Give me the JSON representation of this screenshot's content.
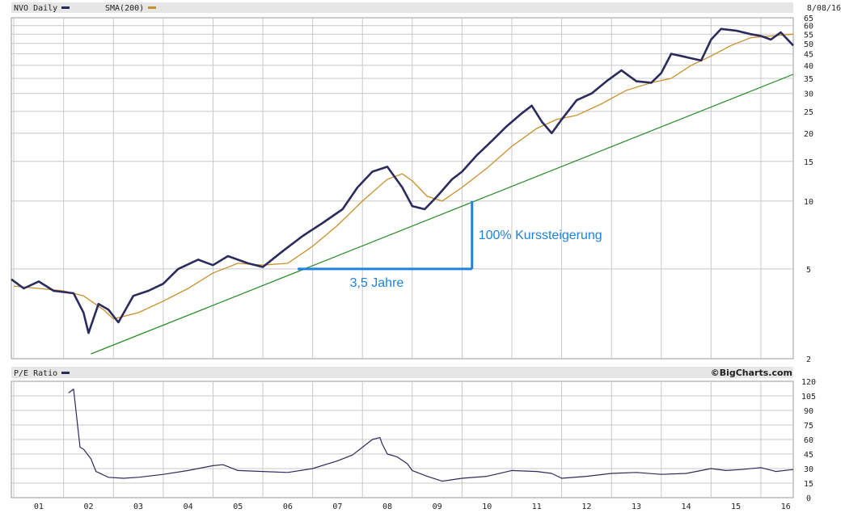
{
  "header": {
    "series_label": "NVO Daily",
    "sma_label": "SMA(200)",
    "date": "8/08/16",
    "pe_label": "P/E Ratio",
    "brand": "©BigCharts.com"
  },
  "colors": {
    "price": "#2b2b5c",
    "sma": "#c8902a",
    "trend": "#1f8a1f",
    "annotation": "#1e82e0",
    "grid": "#c8c8c8",
    "band": "#e6e6e6"
  },
  "chart_data": [
    {
      "type": "line",
      "scale": "log",
      "x_labels": [
        "01",
        "02",
        "03",
        "04",
        "05",
        "06",
        "07",
        "08",
        "09",
        "10",
        "11",
        "12",
        "13",
        "14",
        "15",
        "16"
      ],
      "y_ticks": [
        2,
        5,
        10,
        15,
        20,
        25,
        30,
        35,
        40,
        45,
        50,
        55,
        60,
        65
      ],
      "ylim": [
        2,
        65
      ],
      "xlim": [
        2000.95,
        2016.65
      ],
      "series": [
        {
          "name": "NVO Daily",
          "x": [
            2000.95,
            2001.2,
            2001.5,
            2001.8,
            2002.2,
            2002.4,
            2002.5,
            2002.7,
            2002.9,
            2003.1,
            2003.4,
            2003.7,
            2004.0,
            2004.3,
            2004.7,
            2005.0,
            2005.3,
            2005.7,
            2006.0,
            2006.4,
            2006.8,
            2007.2,
            2007.6,
            2007.9,
            2008.2,
            2008.5,
            2008.8,
            2009.0,
            2009.25,
            2009.5,
            2009.8,
            2010.0,
            2010.3,
            2010.6,
            2010.9,
            2011.2,
            2011.4,
            2011.6,
            2011.8,
            2012.0,
            2012.3,
            2012.6,
            2012.9,
            2013.2,
            2013.5,
            2013.8,
            2014.0,
            2014.2,
            2014.4,
            2014.6,
            2014.8,
            2015.0,
            2015.2,
            2015.5,
            2015.8,
            2016.0,
            2016.2,
            2016.4,
            2016.65
          ],
          "values": [
            4.5,
            4.1,
            4.4,
            4.0,
            3.9,
            3.2,
            2.6,
            3.5,
            3.3,
            2.9,
            3.8,
            4.0,
            4.3,
            5.0,
            5.5,
            5.2,
            5.7,
            5.3,
            5.1,
            6.0,
            7.0,
            8.0,
            9.2,
            11.5,
            13.5,
            14.2,
            11.5,
            9.5,
            9.2,
            10.5,
            12.5,
            13.5,
            16.0,
            18.5,
            21.5,
            24.5,
            26.5,
            22.5,
            20.0,
            23.0,
            28.0,
            30.0,
            34.0,
            38.0,
            34.0,
            33.5,
            37.0,
            45.0,
            44.0,
            43.0,
            42.0,
            52.0,
            58.0,
            57.0,
            55.0,
            54.0,
            52.0,
            56.0,
            49.0
          ]
        },
        {
          "name": "SMA(200)",
          "x": [
            2001.0,
            2001.5,
            2002.0,
            2002.4,
            2002.8,
            2003.0,
            2003.5,
            2004.0,
            2004.5,
            2005.0,
            2005.5,
            2006.0,
            2006.5,
            2007.0,
            2007.5,
            2008.0,
            2008.5,
            2008.8,
            2009.0,
            2009.3,
            2009.6,
            2010.0,
            2010.5,
            2011.0,
            2011.5,
            2011.9,
            2012.3,
            2012.8,
            2013.3,
            2013.8,
            2014.2,
            2014.6,
            2015.0,
            2015.4,
            2015.8,
            2016.2,
            2016.65
          ],
          "values": [
            4.2,
            4.1,
            4.0,
            3.8,
            3.3,
            3.0,
            3.2,
            3.6,
            4.1,
            4.8,
            5.3,
            5.2,
            5.3,
            6.3,
            7.8,
            10.0,
            12.5,
            13.2,
            12.3,
            10.5,
            10.0,
            11.5,
            14.0,
            17.5,
            21.0,
            23.0,
            24.0,
            27.0,
            31.0,
            33.5,
            35.0,
            40.0,
            44.0,
            49.0,
            53.0,
            54.0,
            55.0
          ]
        },
        {
          "name": "trend",
          "x": [
            2002.55,
            2016.65
          ],
          "values": [
            2.1,
            36.5
          ]
        }
      ],
      "annotations": {
        "horizontal_label": "3,5 Jahre",
        "vertical_label": "100% Kurssteigerung",
        "x_start": 2006.7,
        "x_end": 2010.2,
        "y_low": 5,
        "y_high": 10
      }
    },
    {
      "type": "line",
      "y_ticks": [
        0,
        15,
        30,
        45,
        60,
        75,
        90,
        105,
        120
      ],
      "ylim": [
        0,
        120
      ],
      "series": [
        {
          "name": "P/E Ratio",
          "x": [
            2002.1,
            2002.2,
            2002.28,
            2002.33,
            2002.4,
            2002.55,
            2002.65,
            2002.9,
            2003.2,
            2003.5,
            2004.0,
            2004.5,
            2005.0,
            2005.2,
            2005.5,
            2006.0,
            2006.5,
            2007.0,
            2007.5,
            2007.8,
            2008.0,
            2008.2,
            2008.35,
            2008.4,
            2008.5,
            2008.7,
            2008.9,
            2009.0,
            2009.3,
            2009.6,
            2010.0,
            2010.5,
            2011.0,
            2011.5,
            2011.8,
            2012.0,
            2012.5,
            2013.0,
            2013.5,
            2014.0,
            2014.5,
            2015.0,
            2015.3,
            2015.6,
            2016.0,
            2016.3,
            2016.65
          ],
          "values": [
            108,
            112,
            75,
            52,
            50,
            40,
            27,
            21,
            20,
            21,
            24,
            28,
            33,
            34,
            28,
            27,
            26,
            30,
            38,
            44,
            52,
            60,
            62,
            55,
            45,
            42,
            35,
            28,
            22,
            17,
            20,
            22,
            28,
            27,
            25,
            20,
            22,
            25,
            26,
            24,
            25,
            30,
            28,
            29,
            31,
            27,
            29
          ]
        }
      ]
    }
  ]
}
